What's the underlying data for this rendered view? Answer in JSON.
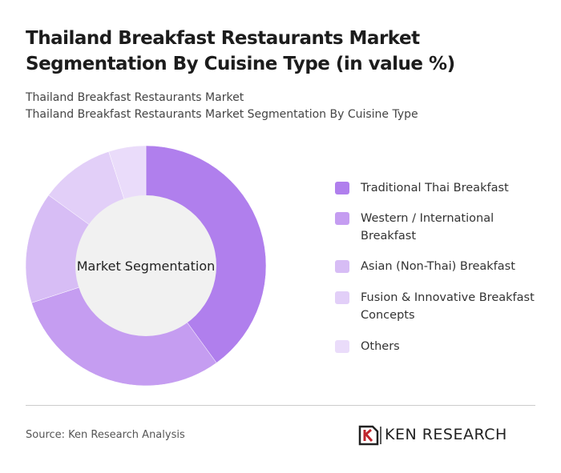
{
  "chart_data": {
    "type": "pie",
    "title": "Thailand Breakfast Restaurants Market Segmentation By Cuisine Type (in value %)",
    "subtitles": [
      "Thailand Breakfast Restaurants Market",
      "Thailand Breakfast Restaurants Market Segmentation By Cuisine Type"
    ],
    "center_label": "Market Segmentation",
    "categories": [
      "Traditional Thai Breakfast",
      "Western / International Breakfast",
      "Asian (Non-Thai) Breakfast",
      "Fusion & Innovative Breakfast Concepts",
      "Others"
    ],
    "values": [
      40,
      30,
      15,
      10,
      5
    ],
    "colors": [
      "#b07fed",
      "#c59df1",
      "#d7bdf5",
      "#e2cff8",
      "#eadcfa"
    ],
    "source": "Source: Ken Research Analysis",
    "logo": "KEN RESEARCH"
  }
}
